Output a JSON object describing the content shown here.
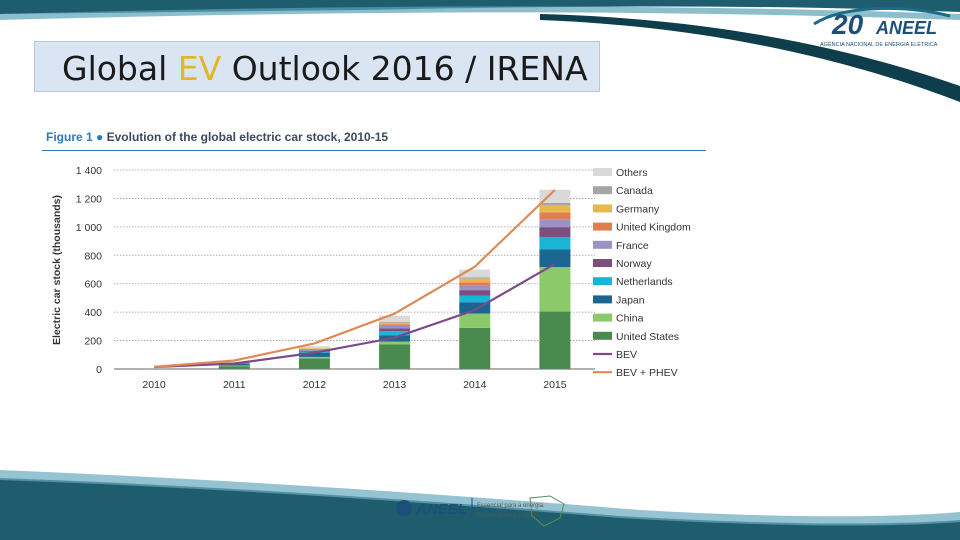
{
  "slide": {
    "title_before": "Global ",
    "title_highlight": "EV",
    "title_after": " Outlook 2016 / IRENA"
  },
  "header_logo": {
    "number": "20",
    "brand": "ANEEL",
    "subtitle": "AGÊNCIA NACIONAL DE ENERGIA ELÉTRICA"
  },
  "footer_logo": {
    "brand": "ANEEL",
    "tagline_1": "Essencial para a energia.",
    "tagline_2": "Essencial para o Brasil."
  },
  "figure": {
    "label": "Figure 1",
    "bullet": "●",
    "caption": "Evolution of the global electric car stock, 2010-15"
  },
  "chart_data": {
    "type": "bar",
    "stacked": true,
    "ylabel": "Electric car stock (thousands)",
    "ylim": [
      0,
      1400
    ],
    "yticks": [
      0,
      200,
      400,
      600,
      800,
      1000,
      1200,
      1400
    ],
    "ytick_labels": [
      "0",
      "200",
      "400",
      "600",
      "800",
      "1 000",
      "1 200",
      "1 400"
    ],
    "grid": true,
    "legend_position": "right",
    "categories": [
      "2010",
      "2011",
      "2012",
      "2013",
      "2014",
      "2015"
    ],
    "series": [
      {
        "name": "United States",
        "color": "#4a8a4f",
        "values": [
          1,
          20,
          75,
          173,
          290,
          404
        ]
      },
      {
        "name": "China",
        "color": "#8cc96a",
        "values": [
          0,
          5,
          10,
          20,
          100,
          313
        ]
      },
      {
        "name": "Japan",
        "color": "#1a6690",
        "values": [
          0,
          13,
          30,
          45,
          80,
          124
        ]
      },
      {
        "name": "Netherlands",
        "color": "#19b4d6",
        "values": [
          0,
          1,
          6,
          28,
          45,
          87
        ]
      },
      {
        "name": "Norway",
        "color": "#7c4f7e",
        "values": [
          0,
          2,
          8,
          20,
          40,
          70
        ]
      },
      {
        "name": "France",
        "color": "#9a93c4",
        "values": [
          0,
          3,
          9,
          20,
          30,
          55
        ]
      },
      {
        "name": "United Kingdom",
        "color": "#e07f4c",
        "values": [
          0,
          1,
          3,
          8,
          25,
          50
        ]
      },
      {
        "name": "Germany",
        "color": "#e6b94f",
        "values": [
          0,
          2,
          5,
          12,
          25,
          48
        ]
      },
      {
        "name": "Canada",
        "color": "#a6a6a6",
        "values": [
          0,
          0,
          1,
          5,
          10,
          18
        ]
      },
      {
        "name": "Others",
        "color": "#d9d9d9",
        "values": [
          0,
          3,
          13,
          44,
          55,
          92
        ]
      }
    ],
    "lines": [
      {
        "name": "BEV",
        "color": "#7b4a8a",
        "values": [
          14,
          39,
          115,
          220,
          415,
          740
        ]
      },
      {
        "name": "BEV + PHEV",
        "color": "#e08a55",
        "values": [
          15,
          60,
          180,
          390,
          720,
          1260
        ]
      }
    ]
  }
}
